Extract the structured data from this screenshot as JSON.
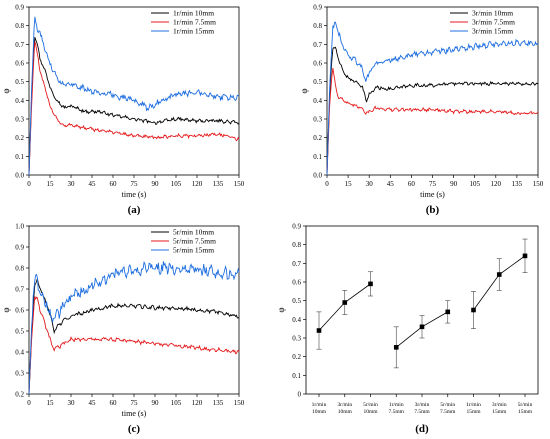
{
  "chart_data": [
    {
      "type": "line",
      "panel_label": "(a)",
      "xlabel": "time (s)",
      "ylabel": "φ",
      "xlim": [
        0,
        150
      ],
      "ylim": [
        0,
        0.9
      ],
      "xticks": [
        "0",
        "15",
        "30",
        "45",
        "60",
        "75",
        "90",
        "105",
        "120",
        "135",
        "150"
      ],
      "yticks": [
        "0.0",
        "0.1",
        "0.2",
        "0.3",
        "0.4",
        "0.5",
        "0.6",
        "0.7",
        "0.8",
        "0.9"
      ],
      "legend_position": "top-right",
      "series": [
        {
          "name": "1r/min  10mm",
          "color": "#000000",
          "points": [
            [
              0,
              0
            ],
            [
              2,
              0.45
            ],
            [
              4,
              0.75
            ],
            [
              6,
              0.7
            ],
            [
              8,
              0.62
            ],
            [
              12,
              0.55
            ],
            [
              15,
              0.47
            ],
            [
              20,
              0.4
            ],
            [
              25,
              0.36
            ],
            [
              30,
              0.37
            ],
            [
              40,
              0.34
            ],
            [
              50,
              0.34
            ],
            [
              60,
              0.32
            ],
            [
              75,
              0.3
            ],
            [
              90,
              0.28
            ],
            [
              105,
              0.3
            ],
            [
              120,
              0.29
            ],
            [
              135,
              0.29
            ],
            [
              150,
              0.28
            ]
          ]
        },
        {
          "name": "1r/min  7.5mm",
          "color": "#e41a1c",
          "points": [
            [
              0,
              0
            ],
            [
              2,
              0.4
            ],
            [
              4,
              0.72
            ],
            [
              6,
              0.65
            ],
            [
              8,
              0.55
            ],
            [
              12,
              0.45
            ],
            [
              15,
              0.37
            ],
            [
              20,
              0.3
            ],
            [
              25,
              0.26
            ],
            [
              30,
              0.27
            ],
            [
              40,
              0.25
            ],
            [
              50,
              0.24
            ],
            [
              60,
              0.23
            ],
            [
              75,
              0.21
            ],
            [
              90,
              0.2
            ],
            [
              105,
              0.21
            ],
            [
              120,
              0.21
            ],
            [
              135,
              0.22
            ],
            [
              150,
              0.19
            ]
          ]
        },
        {
          "name": "1r/min  15mm",
          "color": "#1f6fe0",
          "points": [
            [
              0,
              0
            ],
            [
              2,
              0.5
            ],
            [
              4,
              0.84
            ],
            [
              6,
              0.78
            ],
            [
              8,
              0.76
            ],
            [
              12,
              0.66
            ],
            [
              15,
              0.6
            ],
            [
              20,
              0.52
            ],
            [
              25,
              0.48
            ],
            [
              30,
              0.49
            ],
            [
              40,
              0.46
            ],
            [
              50,
              0.44
            ],
            [
              60,
              0.43
            ],
            [
              75,
              0.4
            ],
            [
              85,
              0.36
            ],
            [
              90,
              0.38
            ],
            [
              105,
              0.43
            ],
            [
              115,
              0.44
            ],
            [
              120,
              0.45
            ],
            [
              135,
              0.42
            ],
            [
              150,
              0.41
            ]
          ]
        }
      ]
    },
    {
      "type": "line",
      "panel_label": "(b)",
      "xlabel": "time (s)",
      "ylabel": "φ",
      "xlim": [
        0,
        150
      ],
      "ylim": [
        0,
        0.9
      ],
      "xticks": [
        "0",
        "15",
        "30",
        "45",
        "60",
        "75",
        "90",
        "105",
        "120",
        "135",
        "150"
      ],
      "yticks": [
        "0.0",
        "0.1",
        "0.2",
        "0.3",
        "0.4",
        "0.5",
        "0.6",
        "0.7",
        "0.8",
        "0.9"
      ],
      "legend_position": "top-right",
      "series": [
        {
          "name": "3r/min 10mm",
          "color": "#000000",
          "points": [
            [
              0,
              0
            ],
            [
              2,
              0.45
            ],
            [
              4,
              0.68
            ],
            [
              6,
              0.68
            ],
            [
              8,
              0.62
            ],
            [
              12,
              0.55
            ],
            [
              15,
              0.52
            ],
            [
              20,
              0.5
            ],
            [
              25,
              0.47
            ],
            [
              28,
              0.4
            ],
            [
              30,
              0.43
            ],
            [
              35,
              0.47
            ],
            [
              45,
              0.46
            ],
            [
              60,
              0.48
            ],
            [
              75,
              0.48
            ],
            [
              90,
              0.49
            ],
            [
              105,
              0.49
            ],
            [
              120,
              0.49
            ],
            [
              135,
              0.49
            ],
            [
              150,
              0.49
            ]
          ]
        },
        {
          "name": "3r/min 7.5mm",
          "color": "#e41a1c",
          "points": [
            [
              0,
              0
            ],
            [
              2,
              0.4
            ],
            [
              4,
              0.58
            ],
            [
              6,
              0.48
            ],
            [
              8,
              0.42
            ],
            [
              12,
              0.4
            ],
            [
              15,
              0.38
            ],
            [
              20,
              0.37
            ],
            [
              25,
              0.36
            ],
            [
              28,
              0.33
            ],
            [
              30,
              0.34
            ],
            [
              35,
              0.36
            ],
            [
              45,
              0.35
            ],
            [
              60,
              0.35
            ],
            [
              75,
              0.35
            ],
            [
              90,
              0.34
            ],
            [
              105,
              0.34
            ],
            [
              120,
              0.34
            ],
            [
              135,
              0.33
            ],
            [
              150,
              0.33
            ]
          ]
        },
        {
          "name": "3r/min 15mm",
          "color": "#1f6fe0",
          "points": [
            [
              0,
              0
            ],
            [
              2,
              0.5
            ],
            [
              4,
              0.78
            ],
            [
              6,
              0.82
            ],
            [
              8,
              0.76
            ],
            [
              12,
              0.68
            ],
            [
              15,
              0.64
            ],
            [
              20,
              0.62
            ],
            [
              25,
              0.57
            ],
            [
              28,
              0.5
            ],
            [
              30,
              0.55
            ],
            [
              35,
              0.6
            ],
            [
              45,
              0.62
            ],
            [
              60,
              0.64
            ],
            [
              75,
              0.66
            ],
            [
              90,
              0.67
            ],
            [
              105,
              0.69
            ],
            [
              120,
              0.7
            ],
            [
              135,
              0.71
            ],
            [
              150,
              0.7
            ]
          ]
        }
      ]
    },
    {
      "type": "line",
      "panel_label": "(c)",
      "xlabel": "time (s)",
      "ylabel": "φ",
      "xlim": [
        0,
        150
      ],
      "ylim": [
        0.2,
        1.0
      ],
      "xticks": [
        "0",
        "15",
        "30",
        "45",
        "60",
        "75",
        "90",
        "105",
        "120",
        "135",
        "150"
      ],
      "yticks": [
        "0.2",
        "0.3",
        "0.4",
        "0.5",
        "0.6",
        "0.7",
        "0.8",
        "0.9",
        "1.0"
      ],
      "legend_position": "top-right",
      "series": [
        {
          "name": "5r/min 10mm",
          "color": "#000000",
          "points": [
            [
              0,
              0.2
            ],
            [
              2,
              0.5
            ],
            [
              4,
              0.72
            ],
            [
              6,
              0.74
            ],
            [
              8,
              0.7
            ],
            [
              12,
              0.64
            ],
            [
              15,
              0.58
            ],
            [
              18,
              0.5
            ],
            [
              20,
              0.52
            ],
            [
              25,
              0.55
            ],
            [
              30,
              0.57
            ],
            [
              45,
              0.6
            ],
            [
              60,
              0.62
            ],
            [
              75,
              0.62
            ],
            [
              90,
              0.61
            ],
            [
              105,
              0.61
            ],
            [
              120,
              0.6
            ],
            [
              135,
              0.59
            ],
            [
              150,
              0.57
            ]
          ]
        },
        {
          "name": "5r/min 7.5mm",
          "color": "#e41a1c",
          "points": [
            [
              0,
              0.2
            ],
            [
              2,
              0.48
            ],
            [
              4,
              0.66
            ],
            [
              6,
              0.65
            ],
            [
              8,
              0.6
            ],
            [
              12,
              0.52
            ],
            [
              15,
              0.46
            ],
            [
              18,
              0.41
            ],
            [
              20,
              0.42
            ],
            [
              25,
              0.44
            ],
            [
              30,
              0.46
            ],
            [
              45,
              0.46
            ],
            [
              60,
              0.46
            ],
            [
              75,
              0.45
            ],
            [
              90,
              0.44
            ],
            [
              105,
              0.43
            ],
            [
              120,
              0.42
            ],
            [
              135,
              0.41
            ],
            [
              150,
              0.4
            ]
          ]
        },
        {
          "name": "5r/min 15mm",
          "color": "#1f6fe0",
          "points": [
            [
              0,
              0.2
            ],
            [
              2,
              0.55
            ],
            [
              4,
              0.75
            ],
            [
              6,
              0.74
            ],
            [
              8,
              0.68
            ],
            [
              12,
              0.64
            ],
            [
              15,
              0.58
            ],
            [
              18,
              0.55
            ],
            [
              20,
              0.58
            ],
            [
              25,
              0.62
            ],
            [
              30,
              0.66
            ],
            [
              45,
              0.72
            ],
            [
              60,
              0.77
            ],
            [
              75,
              0.79
            ],
            [
              90,
              0.8
            ],
            [
              105,
              0.8
            ],
            [
              120,
              0.79
            ],
            [
              135,
              0.78
            ],
            [
              150,
              0.77
            ]
          ]
        }
      ]
    },
    {
      "type": "scatter",
      "panel_label": "(d)",
      "xlabel": "",
      "ylabel": "φ",
      "ylim": [
        0,
        0.9
      ],
      "yticks": [
        "0",
        "0.1",
        "0.2",
        "0.3",
        "0.4",
        "0.5",
        "0.6",
        "0.7",
        "0.8",
        "0.9"
      ],
      "categories": [
        [
          "1r/min",
          "10mm"
        ],
        [
          "3r/min",
          "10mm"
        ],
        [
          "5r/min",
          "10mm"
        ],
        [
          "1r/min",
          "7.5mm"
        ],
        [
          "3r/min",
          "7.5mm"
        ],
        [
          "5r/min",
          "7.5mm"
        ],
        [
          "1r/min",
          "15mm"
        ],
        [
          "3r/min",
          "15mm"
        ],
        [
          "5r/min",
          "15mm"
        ]
      ],
      "groups": [
        {
          "points": [
            {
              "category": 0,
              "value": 0.34,
              "error": 0.1
            },
            {
              "category": 1,
              "value": 0.49,
              "error": 0.065
            },
            {
              "category": 2,
              "value": 0.59,
              "error": 0.065
            }
          ]
        },
        {
          "points": [
            {
              "category": 3,
              "value": 0.25,
              "error": 0.11
            },
            {
              "category": 4,
              "value": 0.36,
              "error": 0.06
            },
            {
              "category": 5,
              "value": 0.44,
              "error": 0.06
            }
          ]
        },
        {
          "points": [
            {
              "category": 6,
              "value": 0.45,
              "error": 0.1
            },
            {
              "category": 7,
              "value": 0.64,
              "error": 0.085
            },
            {
              "category": 8,
              "value": 0.74,
              "error": 0.09
            }
          ]
        }
      ]
    }
  ]
}
